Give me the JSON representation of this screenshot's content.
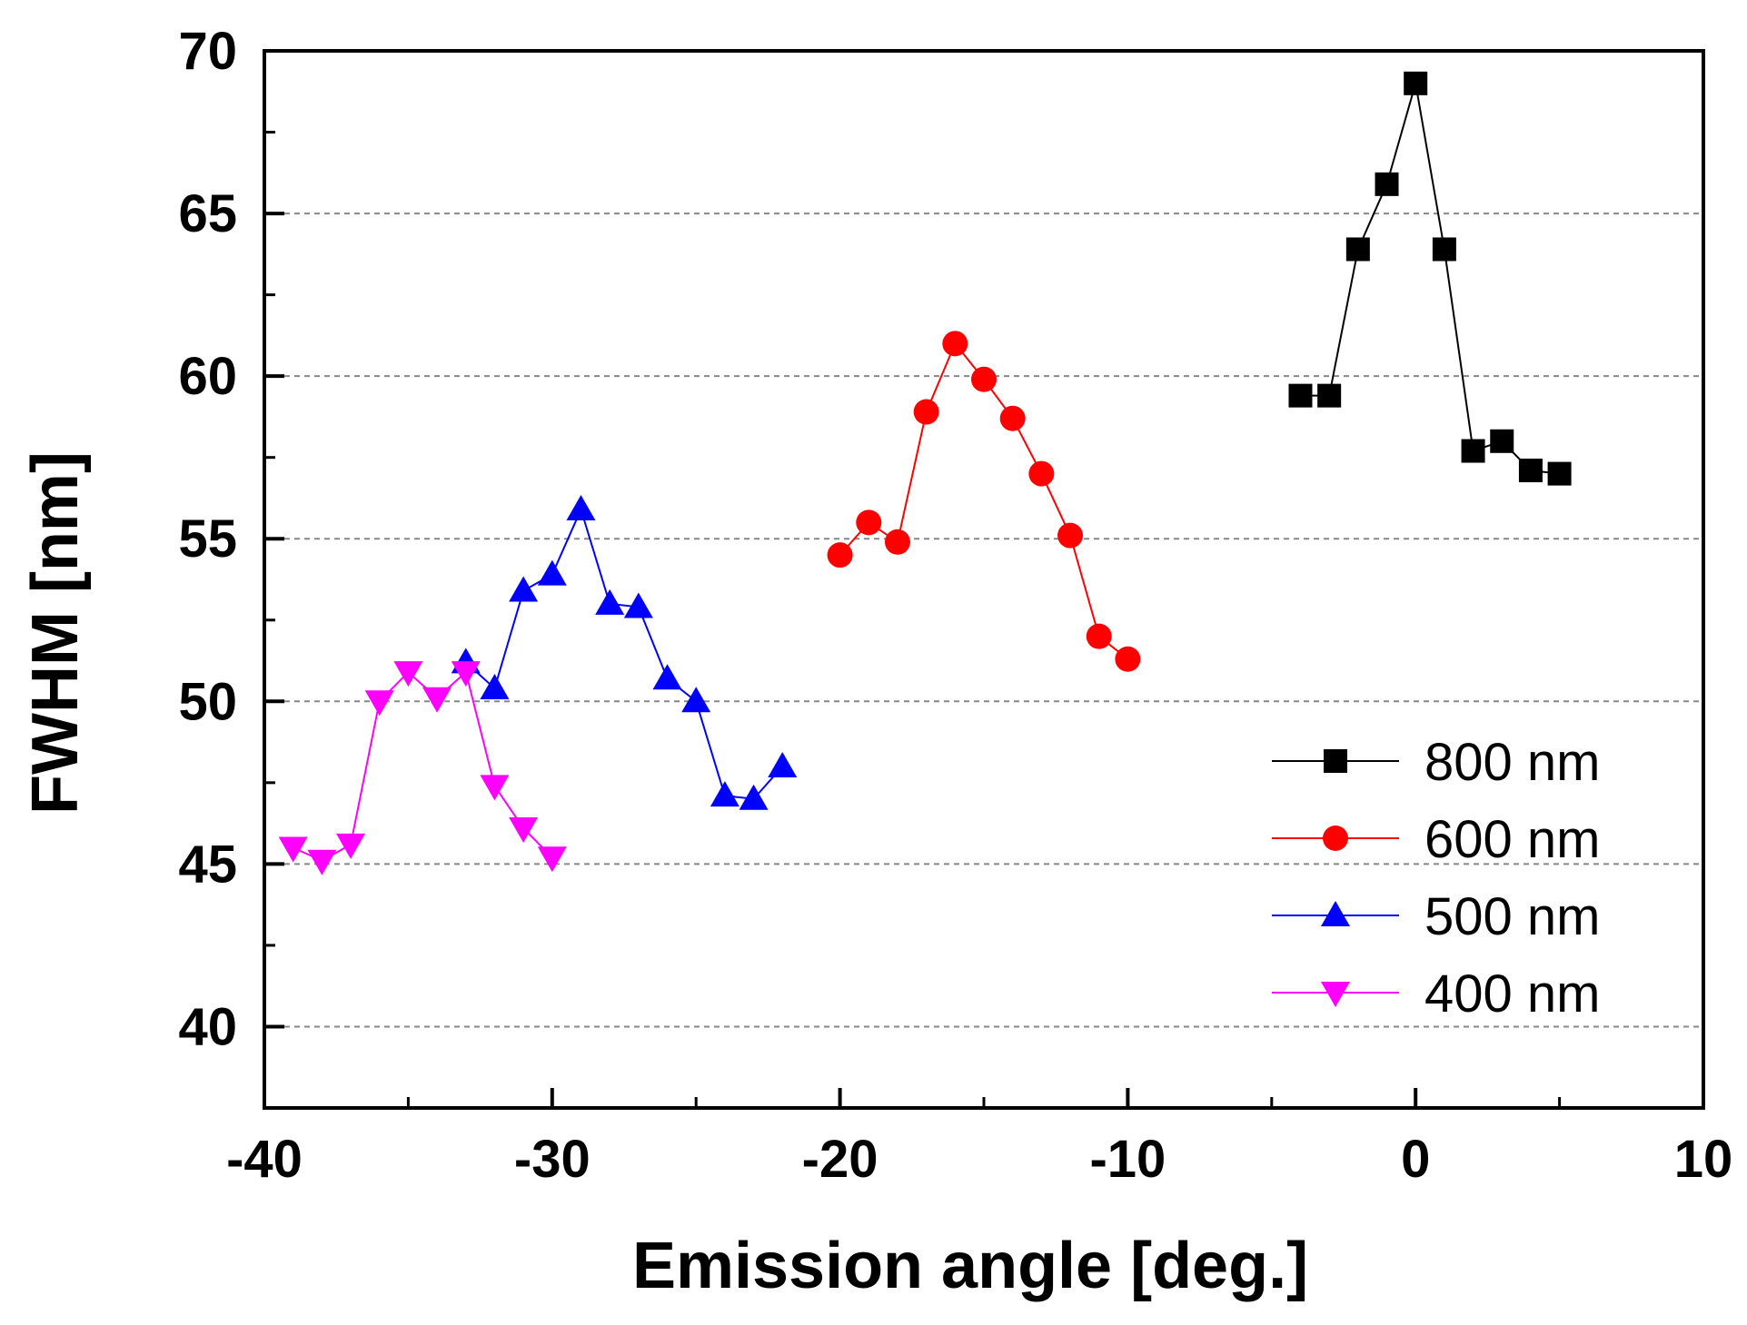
{
  "chart_data": {
    "type": "line",
    "xlabel": "Emission angle [deg.]",
    "ylabel": "FWHM [nm]",
    "xlim": [
      -40,
      10
    ],
    "ylim": [
      37.5,
      70
    ],
    "xticks": [
      -40,
      -30,
      -20,
      -10,
      0,
      10
    ],
    "yticks": [
      40,
      45,
      50,
      55,
      60,
      65,
      70
    ],
    "xtick_labels": [
      "-40",
      "-30",
      "-20",
      "-10",
      "0",
      "10"
    ],
    "ytick_labels": [
      "40",
      "45",
      "50",
      "55",
      "60",
      "65",
      "70"
    ],
    "grid": "horizontal dashed",
    "legend_position": "lower-right",
    "series": [
      {
        "name": "800 nm",
        "color": "#000000",
        "marker": "square",
        "x": [
          -4,
          -3,
          -2,
          -1,
          0,
          1,
          2,
          3,
          4,
          5
        ],
        "y": [
          59.4,
          59.4,
          63.9,
          65.9,
          69.0,
          63.9,
          57.7,
          58.0,
          57.1,
          57.0
        ]
      },
      {
        "name": "600 nm",
        "color": "#ff0000",
        "marker": "circle",
        "x": [
          -20,
          -19,
          -18,
          -17,
          -16,
          -15,
          -14,
          -13,
          -12,
          -11,
          -10
        ],
        "y": [
          54.5,
          55.5,
          54.9,
          58.9,
          61.0,
          59.9,
          58.7,
          57.0,
          55.1,
          52.0,
          51.3
        ]
      },
      {
        "name": "500 nm",
        "color": "#0000ff",
        "marker": "triangle-up",
        "x": [
          -33,
          -32,
          -31,
          -30,
          -29,
          -28,
          -27,
          -26,
          -25,
          -24,
          -23,
          -22
        ],
        "y": [
          51.2,
          50.4,
          53.4,
          53.9,
          55.9,
          53.0,
          52.9,
          50.7,
          50.0,
          47.1,
          47.0,
          48.0
        ]
      },
      {
        "name": "400 nm",
        "color": "#ff00ff",
        "marker": "triangle-down",
        "x": [
          -39,
          -38,
          -37,
          -36,
          -35,
          -34,
          -33,
          -32,
          -31,
          -30
        ],
        "y": [
          45.5,
          45.1,
          45.6,
          50.0,
          50.9,
          50.1,
          50.9,
          47.4,
          46.1,
          45.2
        ]
      }
    ]
  }
}
